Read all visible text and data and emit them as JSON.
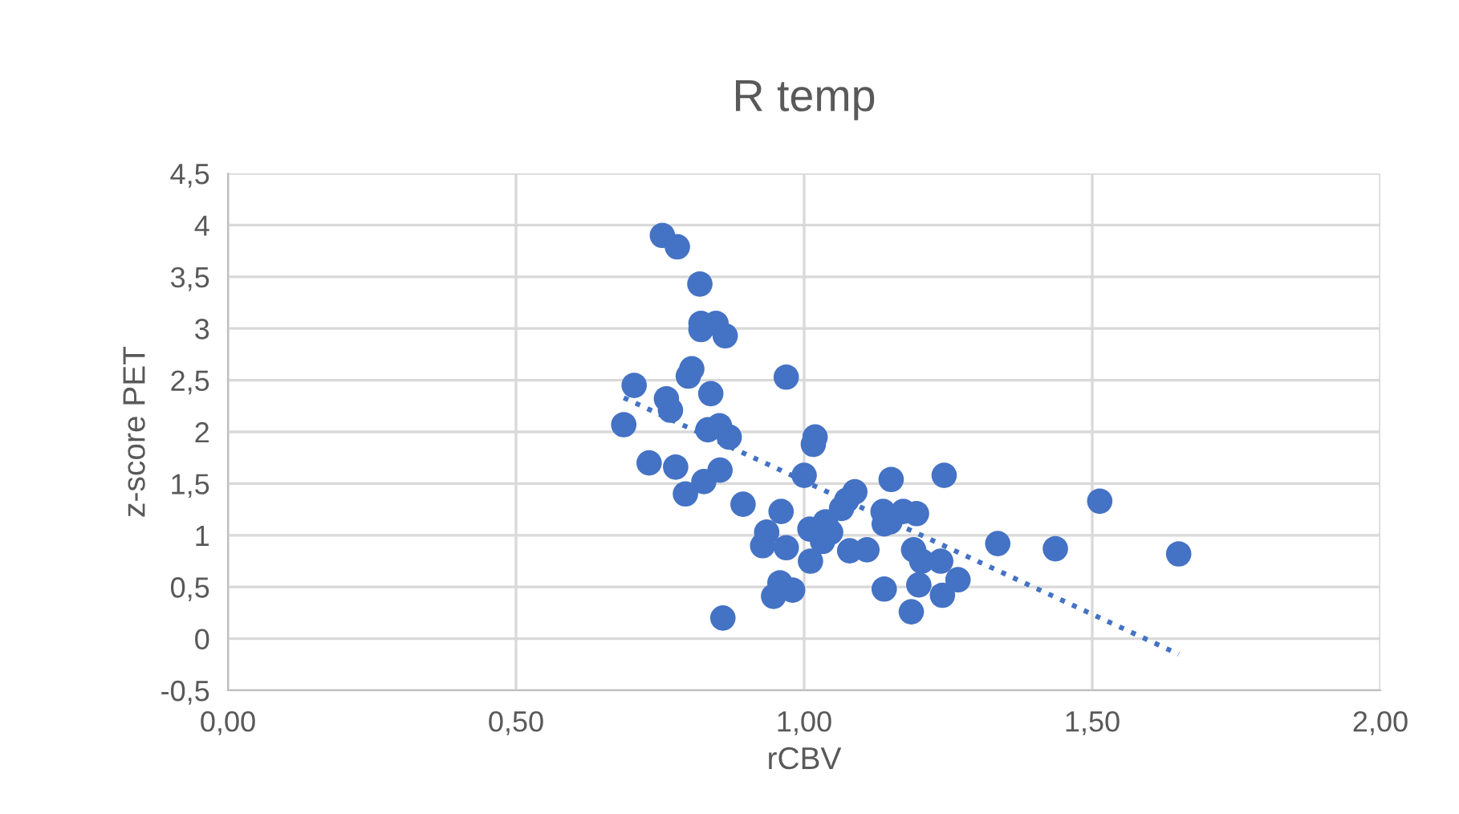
{
  "chart_data": {
    "type": "scatter",
    "title": "R temp",
    "xlabel": "rCBV",
    "ylabel": "z-score PET",
    "xlim": [
      0,
      2.0
    ],
    "xticks": [
      {
        "value": 0,
        "label": "0,00"
      },
      {
        "value": 0.5,
        "label": "0,50"
      },
      {
        "value": 1.0,
        "label": "1,00"
      },
      {
        "value": 1.5,
        "label": "1,50"
      },
      {
        "value": 2.0,
        "label": "2,00"
      }
    ],
    "ylim": [
      -0.5,
      4.5
    ],
    "yticks": [
      {
        "value": -0.5,
        "label": "-0,5"
      },
      0,
      {
        "value": 0.5,
        "label": "0,5"
      },
      1,
      {
        "value": 1.5,
        "label": "1,5"
      },
      2,
      {
        "value": 2.5,
        "label": "2,5"
      },
      3,
      {
        "value": 3.5,
        "label": "3,5"
      },
      4,
      {
        "value": 4.5,
        "label": "4,5"
      }
    ],
    "grid": true,
    "marker": "circle",
    "series": [
      {
        "color": "#4472c4",
        "x": [
          0.754,
          0.78,
          0.819,
          0.821,
          0.821,
          0.847,
          0.863,
          0.805,
          0.799,
          0.969,
          0.705,
          0.838,
          0.761,
          0.768,
          0.687,
          0.833,
          0.853,
          0.87,
          1.019,
          1.016,
          0.731,
          0.777,
          0.854,
          0.826,
          0.794,
          1.0,
          0.894,
          0.96,
          0.935,
          0.928,
          0.969,
          1.011,
          0.958,
          0.947,
          0.98,
          0.859,
          1.01,
          1.037,
          1.046,
          1.032,
          1.065,
          1.074,
          1.088,
          1.079,
          1.109,
          1.151,
          1.243,
          1.137,
          1.172,
          1.195,
          1.149,
          1.139,
          1.19,
          1.204,
          1.237,
          1.336,
          1.436,
          1.513,
          1.65,
          1.139,
          1.199,
          1.24,
          1.267,
          1.186
        ],
        "values": [
          3.9,
          3.79,
          3.43,
          3.05,
          2.99,
          3.05,
          2.93,
          2.61,
          2.54,
          2.53,
          2.45,
          2.37,
          2.32,
          2.21,
          2.07,
          2.02,
          2.06,
          1.95,
          1.95,
          1.88,
          1.7,
          1.66,
          1.63,
          1.52,
          1.4,
          1.58,
          1.3,
          1.23,
          1.03,
          0.9,
          0.88,
          0.75,
          0.54,
          0.41,
          0.47,
          0.2,
          1.06,
          1.13,
          1.03,
          0.94,
          1.26,
          1.34,
          1.42,
          0.85,
          0.86,
          1.54,
          1.58,
          1.23,
          1.23,
          1.21,
          1.13,
          1.11,
          0.86,
          0.75,
          0.75,
          0.92,
          0.87,
          1.33,
          0.82,
          0.48,
          0.52,
          0.42,
          0.57,
          0.26
        ]
      },
      {
        "type": "line",
        "color": "#4472c4",
        "marker": "none",
        "line_style": "dotted",
        "x": [
          0.687,
          1.65
        ],
        "values": [
          2.33,
          -0.15
        ]
      }
    ]
  }
}
